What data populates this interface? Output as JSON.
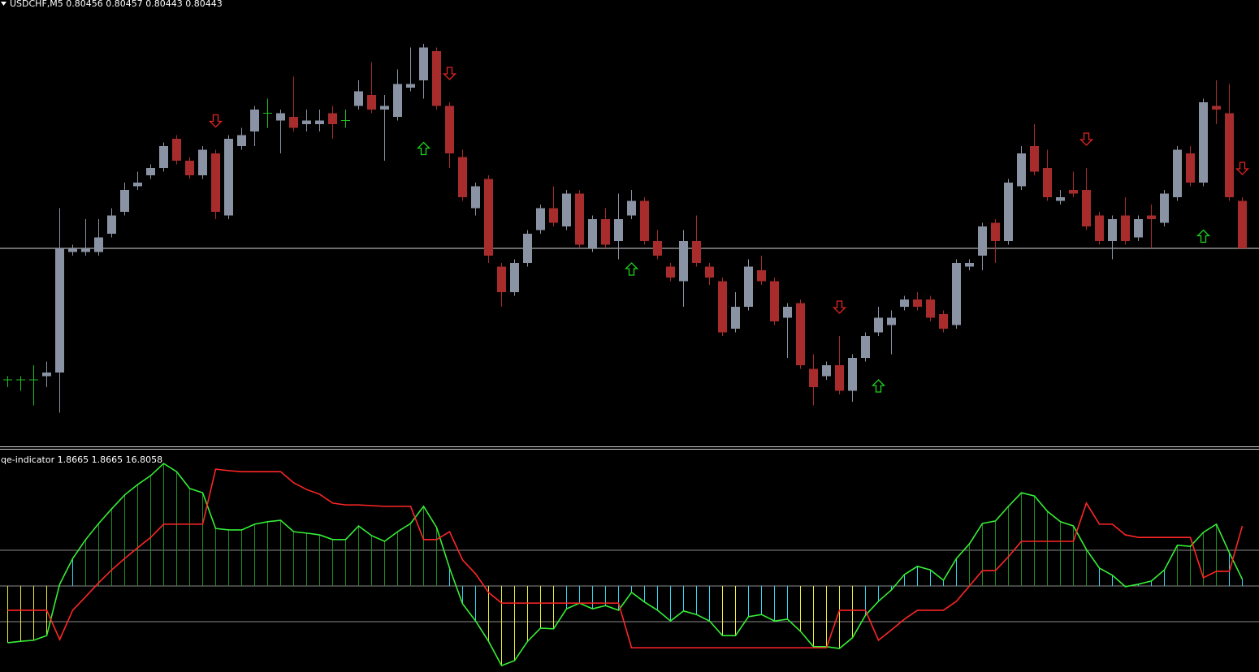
{
  "chart_data": [
    {
      "type": "candlestick",
      "title": "USDCHF,M5  0.80456 0.80457 0.80443 0.80443",
      "ylim": [
        0.8039,
        0.8051
      ],
      "bid_line": 0.80443,
      "bull_color": "#8a93a3",
      "bear_color": "#a82c2c",
      "doji_color": "#22c022",
      "buy_color": "#1ed21e",
      "sell_color": "#e02424",
      "open": [
        0.80407,
        0.80407,
        0.80407,
        0.80408,
        0.80409,
        0.80442,
        0.80442,
        0.80442,
        0.80447,
        0.80453,
        0.8046,
        0.80463,
        0.80465,
        0.80473,
        0.80467,
        0.80463,
        0.80469,
        0.80452,
        0.80471,
        0.80475,
        0.8048,
        0.80478,
        0.80479,
        0.80477,
        0.80477,
        0.8048,
        0.80478,
        0.80482,
        0.80485,
        0.80481,
        0.80479,
        0.80487,
        0.80489,
        0.80497,
        0.80482,
        0.80468,
        0.80454,
        0.80462,
        0.80438,
        0.80431,
        0.80439,
        0.80448,
        0.80454,
        0.80449,
        0.80458,
        0.80443,
        0.80451,
        0.80445,
        0.80452,
        0.80456,
        0.80445,
        0.80438,
        0.80434,
        0.80445,
        0.80438,
        0.80434,
        0.80421,
        0.80427,
        0.80437,
        0.80434,
        0.80424,
        0.80428,
        0.8041,
        0.80408,
        0.80411,
        0.80404,
        0.80413,
        0.8042,
        0.80422,
        0.80427,
        0.80429,
        0.80429,
        0.80425,
        0.80422,
        0.80438,
        0.80441,
        0.8045,
        0.80445,
        0.8046,
        0.80471,
        0.80465,
        0.80456,
        0.80459,
        0.80459,
        0.80452,
        0.80445,
        0.80452,
        0.80446,
        0.80452,
        0.8045,
        0.80457,
        0.80469,
        0.80461,
        0.80482,
        0.8048,
        0.80456
      ],
      "high": [
        0.80408,
        0.80408,
        0.80411,
        0.80412,
        0.80454,
        0.80444,
        0.80451,
        0.80451,
        0.80454,
        0.80461,
        0.80464,
        0.80466,
        0.80472,
        0.80474,
        0.80468,
        0.80471,
        0.8047,
        0.80474,
        0.80476,
        0.80482,
        0.80484,
        0.80481,
        0.8049,
        0.80481,
        0.80481,
        0.80482,
        0.80481,
        0.80489,
        0.80494,
        0.80485,
        0.80492,
        0.80498,
        0.80499,
        0.80498,
        0.80483,
        0.8047,
        0.80461,
        0.80463,
        0.80439,
        0.8044,
        0.80448,
        0.80455,
        0.8046,
        0.80459,
        0.80459,
        0.80452,
        0.80454,
        0.80458,
        0.80459,
        0.80457,
        0.80448,
        0.80439,
        0.80448,
        0.80452,
        0.80439,
        0.80435,
        0.80431,
        0.8044,
        0.80441,
        0.80435,
        0.80428,
        0.80429,
        0.80414,
        0.80412,
        0.80419,
        0.80414,
        0.8042,
        0.80427,
        0.80426,
        0.8043,
        0.80431,
        0.8043,
        0.80426,
        0.8044,
        0.8044,
        0.8045,
        0.80451,
        0.80462,
        0.80471,
        0.80477,
        0.8047,
        0.80459,
        0.80464,
        0.80465,
        0.80453,
        0.80452,
        0.80457,
        0.80452,
        0.80455,
        0.80459,
        0.80471,
        0.80471,
        0.80484,
        0.80489,
        0.80488,
        0.80457
      ],
      "low": [
        0.80405,
        0.80404,
        0.804,
        0.80405,
        0.80398,
        0.80441,
        0.80441,
        0.80441,
        0.80446,
        0.80452,
        0.80459,
        0.80462,
        0.80464,
        0.80466,
        0.80462,
        0.80462,
        0.80451,
        0.80451,
        0.8047,
        0.80471,
        0.80476,
        0.80469,
        0.80475,
        0.80475,
        0.80475,
        0.80473,
        0.80476,
        0.80481,
        0.8048,
        0.80467,
        0.80478,
        0.80486,
        0.80484,
        0.80481,
        0.80465,
        0.80456,
        0.80452,
        0.80439,
        0.80427,
        0.8043,
        0.80438,
        0.80447,
        0.80449,
        0.80448,
        0.80443,
        0.80442,
        0.80443,
        0.8044,
        0.80451,
        0.80444,
        0.8044,
        0.80434,
        0.80427,
        0.80438,
        0.80433,
        0.80419,
        0.8042,
        0.80426,
        0.80433,
        0.80422,
        0.80413,
        0.8041,
        0.804,
        0.80407,
        0.80403,
        0.80401,
        0.80412,
        0.80419,
        0.80414,
        0.80426,
        0.80426,
        0.80423,
        0.8042,
        0.80421,
        0.80437,
        0.80437,
        0.80439,
        0.80444,
        0.80459,
        0.80463,
        0.80456,
        0.80455,
        0.80457,
        0.80448,
        0.80444,
        0.8044,
        0.80444,
        0.80445,
        0.80443,
        0.80449,
        0.80456,
        0.8046,
        0.8046,
        0.80477,
        0.80456,
        0.80443
      ],
      "close": [
        0.80407,
        0.80407,
        0.80407,
        0.80409,
        0.80443,
        0.80443,
        0.80443,
        0.80446,
        0.80452,
        0.80459,
        0.80461,
        0.80465,
        0.80471,
        0.80467,
        0.80463,
        0.8047,
        0.80453,
        0.80473,
        0.80474,
        0.80481,
        0.8048,
        0.8048,
        0.80476,
        0.80478,
        0.80478,
        0.80477,
        0.80478,
        0.80486,
        0.80481,
        0.80482,
        0.80488,
        0.80488,
        0.80498,
        0.80482,
        0.80469,
        0.80457,
        0.8046,
        0.80441,
        0.80431,
        0.80439,
        0.80447,
        0.80454,
        0.8045,
        0.80458,
        0.80444,
        0.80451,
        0.80444,
        0.80451,
        0.80456,
        0.80445,
        0.80441,
        0.80435,
        0.80445,
        0.80439,
        0.80435,
        0.8042,
        0.80427,
        0.80438,
        0.80434,
        0.80423,
        0.80427,
        0.80411,
        0.80405,
        0.80411,
        0.80404,
        0.80413,
        0.80419,
        0.80424,
        0.80424,
        0.80429,
        0.80427,
        0.80424,
        0.80421,
        0.80439,
        0.80439,
        0.80449,
        0.80445,
        0.80461,
        0.80469,
        0.80464,
        0.80457,
        0.80457,
        0.80458,
        0.80449,
        0.80445,
        0.80451,
        0.80445,
        0.80451,
        0.80451,
        0.80458,
        0.8047,
        0.80461,
        0.80483,
        0.80481,
        0.80457,
        0.80443
      ],
      "buy_signals": [
        32,
        48,
        67,
        92
      ],
      "sell_signals": [
        16,
        34,
        64,
        83,
        95
      ]
    },
    {
      "type": "line",
      "title": "qqe-indicator 1.8665 1.8665 16.8058",
      "ylim": [
        -24,
        38
      ],
      "levels": [
        -10,
        0,
        10
      ],
      "histogram": true,
      "histogram_colors": {
        "above": "#1f8f1f",
        "within": "#2fd8f0",
        "below": "#f0f030"
      },
      "series": [
        {
          "color": "#36ee36",
          "values": [
            -15.9,
            -15.5,
            -15.2,
            -13.9,
            0.5,
            7.7,
            13.0,
            17.5,
            21.6,
            25.5,
            28.4,
            30.9,
            34.3,
            32.0,
            27.3,
            26.1,
            16.1,
            15.7,
            15.7,
            17.3,
            18.0,
            18.4,
            15.2,
            14.8,
            14.3,
            13.0,
            13.0,
            16.8,
            14.1,
            12.5,
            15.2,
            17.5,
            22.3,
            16.4,
            5.0,
            -5.0,
            -9.8,
            -15.5,
            -22.3,
            -20.9,
            -15.5,
            -11.8,
            -12.0,
            -6.4,
            -4.8,
            -6.4,
            -5.5,
            -6.8,
            -1.8,
            -4.5,
            -6.8,
            -9.8,
            -7.0,
            -8.0,
            -9.8,
            -13.9,
            -13.9,
            -8.6,
            -8.0,
            -9.8,
            -9.3,
            -12.7,
            -17.0,
            -17.0,
            -17.5,
            -14.5,
            -8.2,
            -4.3,
            -1.1,
            3.2,
            5.5,
            4.5,
            1.6,
            7.7,
            11.8,
            17.5,
            18.2,
            22.3,
            26.1,
            25.2,
            20.9,
            18.0,
            16.8,
            10.2,
            5.0,
            3.0,
            -0.2,
            0.5,
            1.4,
            4.5,
            11.4,
            11.1,
            15.0,
            17.3,
            9.3,
            1.8665
          ]
        },
        {
          "color": "#ff2626",
          "values": [
            -6.8,
            -6.8,
            -6.8,
            -6.8,
            -15.0,
            -6.8,
            -3.0,
            0.9,
            4.5,
            7.7,
            10.7,
            13.6,
            17.3,
            17.3,
            17.3,
            17.3,
            32.7,
            32.3,
            32.0,
            32.0,
            32.0,
            32.0,
            28.9,
            27.0,
            25.7,
            23.2,
            22.7,
            22.7,
            22.5,
            22.3,
            22.3,
            22.3,
            13.0,
            13.0,
            15.2,
            7.3,
            3.4,
            -1.8,
            -4.8,
            -4.8,
            -4.8,
            -4.8,
            -4.8,
            -4.8,
            -4.8,
            -4.8,
            -4.8,
            -4.8,
            -17.3,
            -17.3,
            -17.3,
            -17.3,
            -17.3,
            -17.3,
            -17.3,
            -17.3,
            -17.3,
            -17.3,
            -17.3,
            -17.3,
            -17.3,
            -17.3,
            -17.3,
            -17.3,
            -6.8,
            -6.8,
            -6.8,
            -15.2,
            -12.3,
            -9.3,
            -6.8,
            -6.8,
            -6.8,
            -4.3,
            0,
            4.3,
            4.3,
            8.2,
            12.5,
            12.5,
            12.5,
            12.5,
            12.5,
            23.2,
            17.3,
            17.3,
            14.3,
            13.6,
            13.6,
            13.6,
            13.6,
            13.6,
            2.3,
            4.1,
            4.1,
            16.8058
          ]
        }
      ]
    }
  ]
}
